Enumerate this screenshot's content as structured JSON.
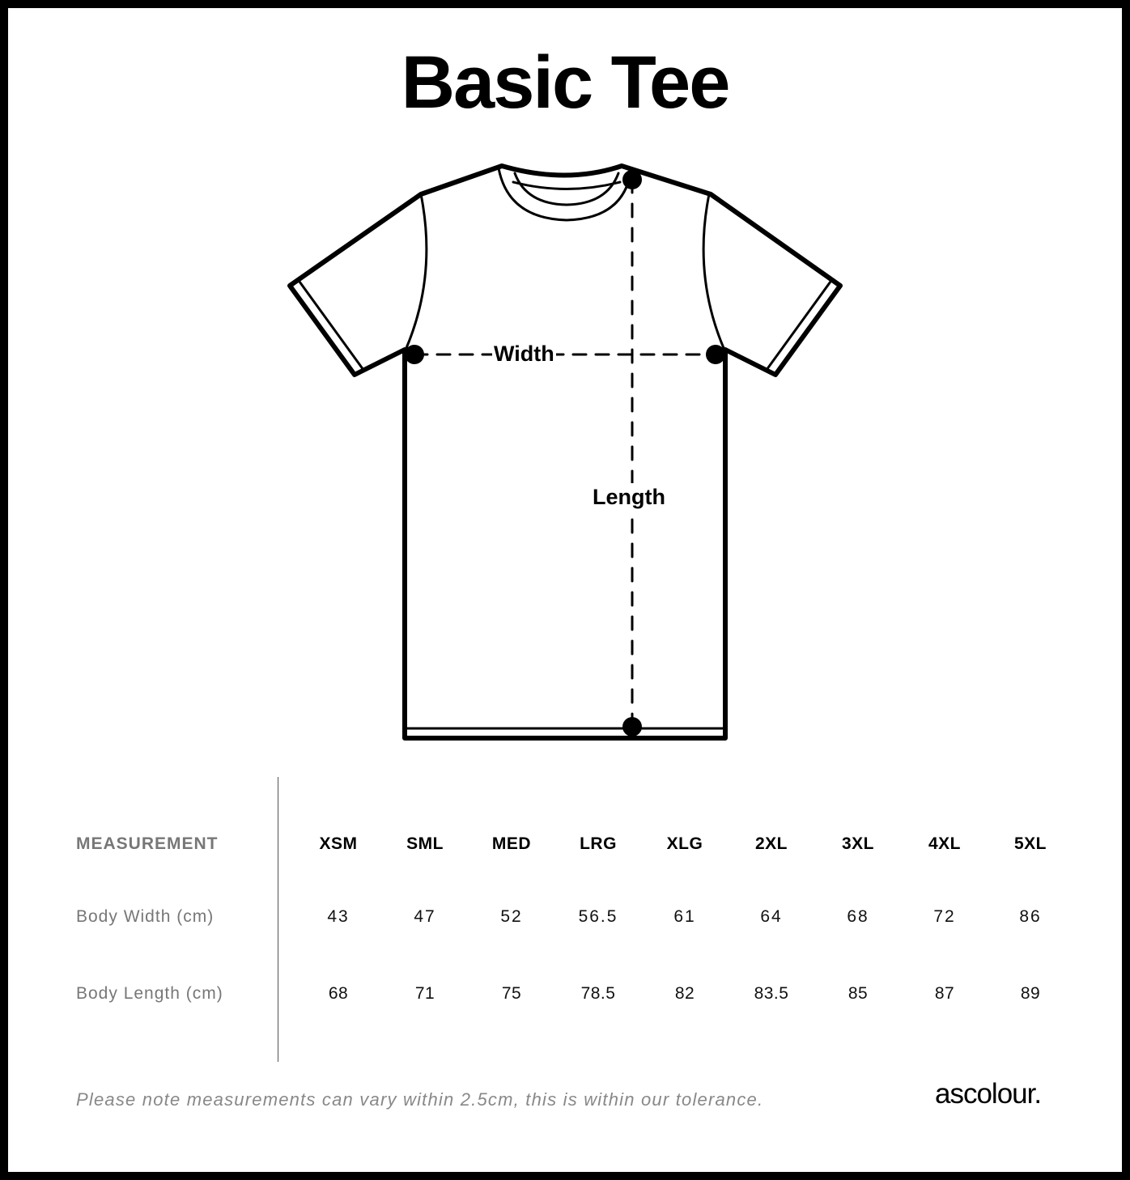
{
  "title": "Basic Tee",
  "diagram": {
    "width_label": "Width",
    "length_label": "Length"
  },
  "table": {
    "header_label": "MEASUREMENT",
    "sizes": [
      "XSM",
      "SML",
      "MED",
      "LRG",
      "XLG",
      "2XL",
      "3XL",
      "4XL",
      "5XL"
    ],
    "rows": [
      {
        "label": "Body Width (cm)",
        "values": [
          "43",
          "47",
          "52",
          "56.5",
          "61",
          "64",
          "68",
          "72",
          "86"
        ]
      },
      {
        "label": "Body Length (cm)",
        "values": [
          "68",
          "71",
          "75",
          "78.5",
          "82",
          "83.5",
          "85",
          "87",
          "89"
        ]
      }
    ]
  },
  "note": "Please note measurements can vary within 2.5cm, this is within our tolerance.",
  "brand": "ascolour."
}
